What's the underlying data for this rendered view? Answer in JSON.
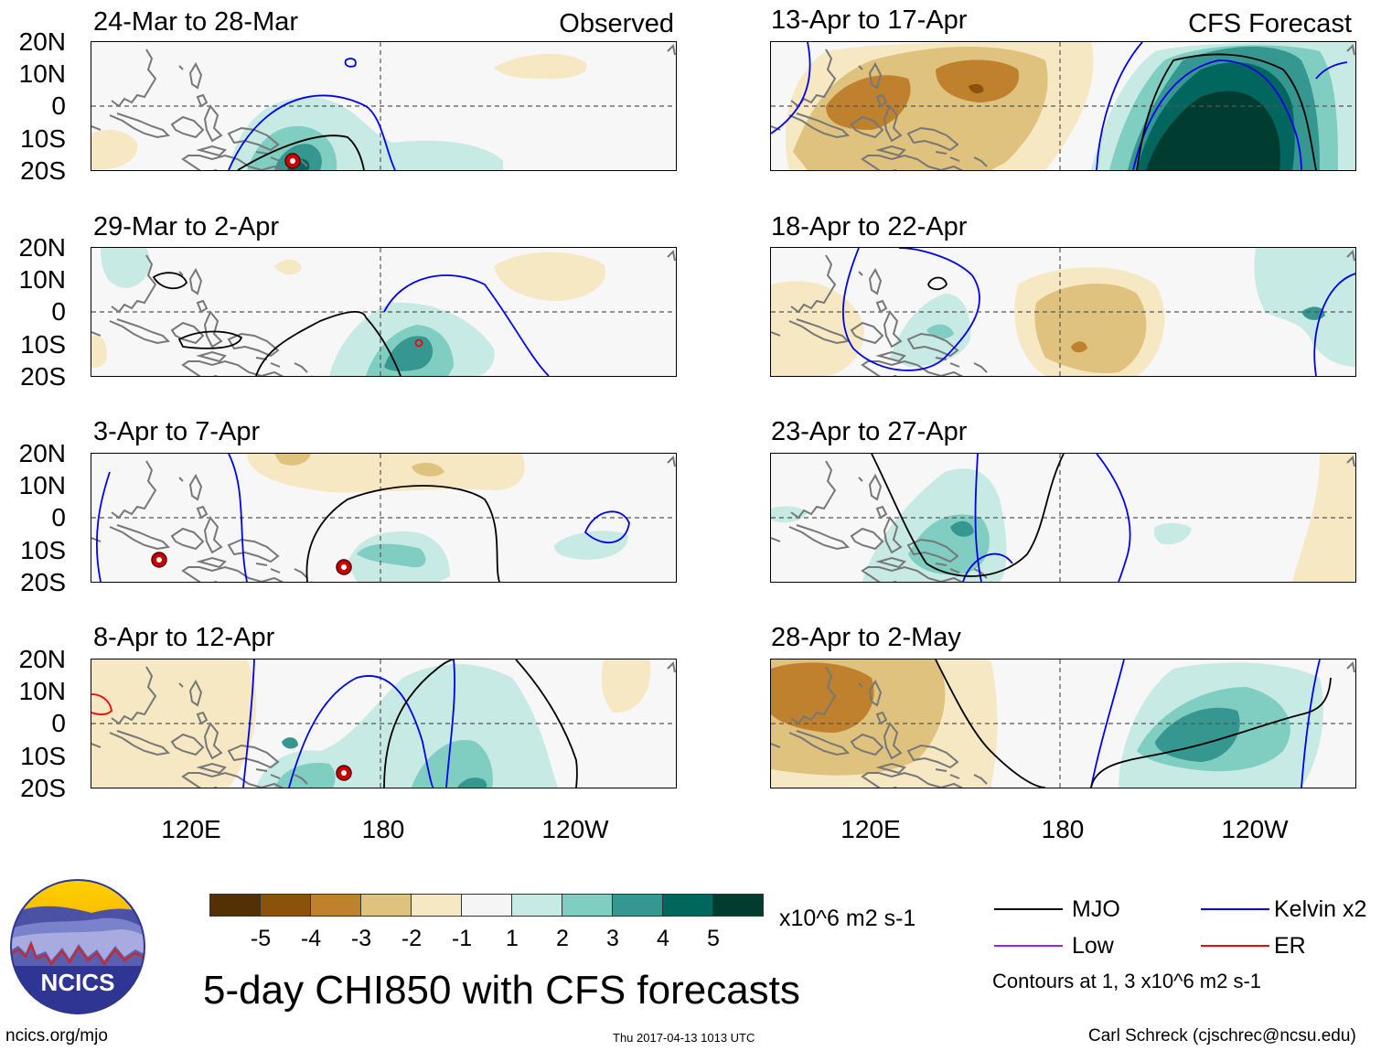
{
  "left_tag": "Observed",
  "right_tag": "CFS Forecast",
  "panels": [
    {
      "title": "24-Mar to 28-Mar"
    },
    {
      "title": "29-Mar to 2-Apr"
    },
    {
      "title": "3-Apr to 7-Apr"
    },
    {
      "title": "8-Apr to 12-Apr"
    },
    {
      "title": "13-Apr to 17-Apr"
    },
    {
      "title": "18-Apr to 22-Apr"
    },
    {
      "title": "23-Apr to 27-Apr"
    },
    {
      "title": "28-Apr to 2-May"
    }
  ],
  "lat_labels": [
    "20N",
    "10N",
    "0",
    "10S",
    "20S"
  ],
  "lon_labels": [
    "120E",
    "180",
    "120W"
  ],
  "colorbar": {
    "colors": [
      "#543005",
      "#8c510a",
      "#bf812d",
      "#dfc27d",
      "#f6e8c3",
      "#f5f5f5",
      "#c7eae5",
      "#80cdc1",
      "#35978f",
      "#01665e",
      "#003c30"
    ],
    "labels": [
      "-5",
      "-4",
      "-3",
      "-2",
      "-1",
      "1",
      "2",
      "3",
      "4",
      "5"
    ],
    "units": "x10^6 m2 s-1"
  },
  "legend": {
    "items": [
      {
        "label": "MJO",
        "color": "#000000"
      },
      {
        "label": "Kelvin x2",
        "color": "#0000ff"
      },
      {
        "label": "Low",
        "color": "#a020f0"
      },
      {
        "label": "ER",
        "color": "#ff0000"
      }
    ],
    "contour_note": "Contours at 1, 3 x10^6 m2 s-1"
  },
  "main_title": "5-day CHI850 with CFS forecasts",
  "logo_text": "NCICS",
  "footer": {
    "url": "ncics.org/mjo",
    "timestamp": "Thu 2017-04-13 1013 UTC",
    "credit": "Carl Schreck (cjschrec@ncsu.edu)"
  }
}
